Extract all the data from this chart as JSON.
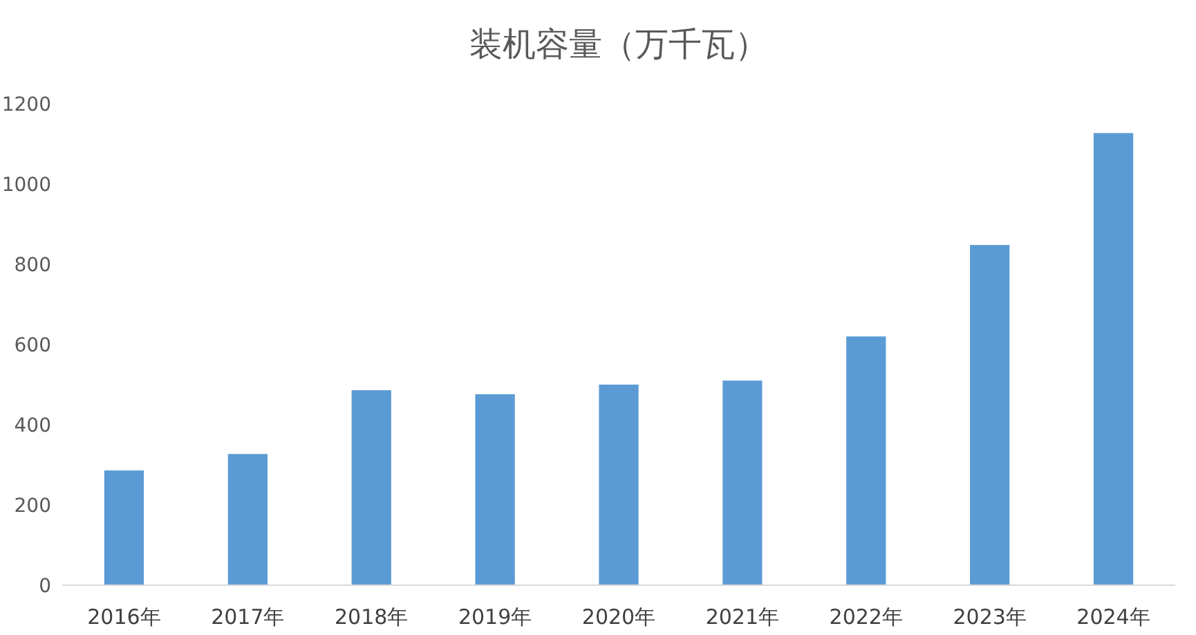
{
  "chart_data": {
    "type": "bar",
    "title": "装机容量（万千瓦）",
    "categories": [
      "2016年",
      "2017年",
      "2018年",
      "2019年",
      "2020年",
      "2021年",
      "2022年",
      "2023年",
      "2024年"
    ],
    "values": [
      286,
      327,
      486,
      476,
      500,
      510,
      620,
      848,
      1127
    ],
    "color": "#5b9bd5",
    "ylim": [
      0,
      1200
    ],
    "yticks": [
      0,
      200,
      400,
      600,
      800,
      1000,
      1200
    ]
  }
}
